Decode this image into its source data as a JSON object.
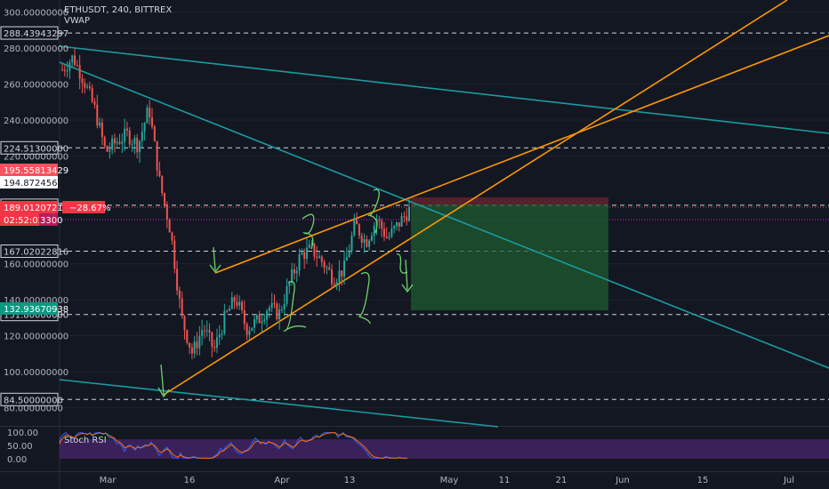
{
  "header": {
    "symbol_line": "ETHUSDT, 240, BITTREX",
    "indicator": "VWAP"
  },
  "chart_data": [
    {
      "type": "candlestick",
      "title": "ETHUSDT, 240, BITTREX",
      "ylim": [
        75,
        305
      ],
      "y_ticks": [
        {
          "value": 300,
          "label": "300.00000000"
        },
        {
          "value": 280,
          "label": "280.00000000"
        },
        {
          "value": 260,
          "label": "260.00000000"
        },
        {
          "value": 240,
          "label": "240.00000000"
        },
        {
          "value": 220,
          "label": "220.00000000"
        },
        {
          "value": 160,
          "label": "160.00000000"
        },
        {
          "value": 140,
          "label": "140.00000000"
        },
        {
          "value": 120,
          "label": "120.00000000"
        },
        {
          "value": 100,
          "label": "100.00000000"
        },
        {
          "value": 80,
          "label": "80.00000000"
        }
      ],
      "x_ticks": [
        "Mar",
        "16",
        "Apr",
        "13",
        "May",
        "11",
        "21",
        "Jun",
        "15",
        "Jul"
      ],
      "price_levels": [
        {
          "value": 288.43943297,
          "label": "288.43943297"
        },
        {
          "value": 224.513,
          "label": "224.51300000"
        },
        {
          "value": 192.56471273,
          "label": "192.56471273"
        },
        {
          "value": 167.02022816,
          "label": "167.02022816"
        },
        {
          "value": 131.8,
          "label": "131.80000000"
        },
        {
          "value": 84.5,
          "label": "84.50000000"
        }
      ],
      "price_tags": [
        {
          "label": "195.55813429",
          "color": "#f7525f"
        },
        {
          "label": "194.87245672",
          "color": "#ffffff"
        },
        {
          "label": "189.01207218",
          "color": "#f23645"
        },
        {
          "label": "02:52:02",
          "color": "#f23645"
        },
        {
          "label": "3300",
          "color": "#b71c5b"
        },
        {
          "label": "132.93670938",
          "color": "#089981"
        }
      ],
      "position_label": "−28.67%",
      "price_series": {
        "x": [
          "Feb 24",
          "Feb 26",
          "Feb 28",
          "Mar 1",
          "Mar 3",
          "Mar 5",
          "Mar 6",
          "Mar 8",
          "Mar 10",
          "Mar 11",
          "Mar 12",
          "Mar 13",
          "Mar 14",
          "Mar 15",
          "Mar 16",
          "Mar 18",
          "Mar 20",
          "Mar 22",
          "Mar 24",
          "Mar 26",
          "Mar 28",
          "Mar 30",
          "Apr 1",
          "Apr 3",
          "Apr 5",
          "Apr 7",
          "Apr 9",
          "Apr 11",
          "Apr 13",
          "Apr 15",
          "Apr 17",
          "Apr 19",
          "Apr 21"
        ],
        "close": [
          268,
          275,
          262,
          246,
          222,
          228,
          232,
          226,
          247,
          205,
          178,
          130,
          110,
          125,
          112,
          130,
          141,
          124,
          128,
          136,
          132,
          150,
          165,
          168,
          161,
          152,
          157,
          182,
          172,
          185,
          174,
          182,
          190
        ]
      }
    },
    {
      "type": "line",
      "title": "Stoch RSI",
      "ylim": [
        0,
        100
      ],
      "y_ticks": [
        {
          "value": 100,
          "label": "100.00"
        },
        {
          "value": 50,
          "label": "50.00"
        },
        {
          "value": 0,
          "label": "0.00"
        }
      ]
    }
  ],
  "colors": {
    "background": "#131722",
    "up": "#26a69a",
    "down": "#ef5350",
    "trend_orange": "#ff9800",
    "trend_teal": "#1b9aa0",
    "annotation_green": "#6fd36a"
  }
}
